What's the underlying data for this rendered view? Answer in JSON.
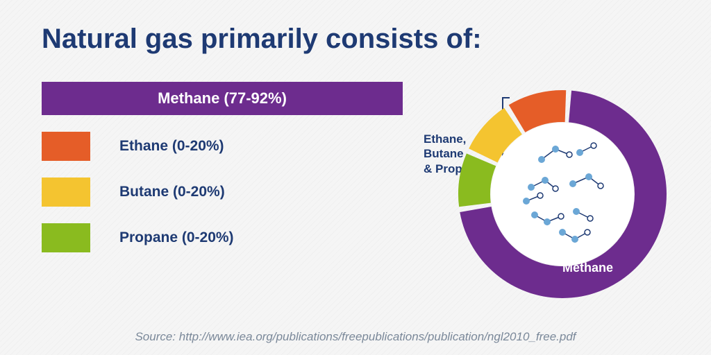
{
  "title": "Natural gas primarily consists of:",
  "colors": {
    "methane": "#6d2c8e",
    "ethane": "#e55d28",
    "butane": "#f4c430",
    "propane": "#8abb1f",
    "titleText": "#1e3a73",
    "molNode": "#6ba7d6",
    "molRing": "#1e3a73"
  },
  "components": [
    {
      "name": "Methane",
      "range": "(77-92%)",
      "label": "Methane (77-92%)",
      "colorKey": "methane",
      "isPrimary": true
    },
    {
      "name": "Ethane",
      "range": "(0-20%)",
      "label": "Ethane (0-20%)",
      "colorKey": "ethane",
      "isPrimary": false
    },
    {
      "name": "Butane",
      "range": "(0-20%)",
      "label": "Butane (0-20%)",
      "colorKey": "butane",
      "isPrimary": false
    },
    {
      "name": "Propane",
      "range": "(0-20%)",
      "label": "Propane (0-20%)",
      "colorKey": "propane",
      "isPrimary": false
    }
  ],
  "donut": {
    "type": "donut",
    "outerR": 150,
    "innerR": 104,
    "gapDeg": 3,
    "segments": [
      {
        "label": "Methane",
        "colorKey": "methane",
        "startDeg": 5,
        "endDeg": 260
      },
      {
        "label": "Propane",
        "colorKey": "propane",
        "startDeg": 263,
        "endDeg": 293
      },
      {
        "label": "Butane",
        "colorKey": "butane",
        "startDeg": 296,
        "endDeg": 326
      },
      {
        "label": "Ethane",
        "colorKey": "ethane",
        "startDeg": 329,
        "endDeg": 362
      }
    ],
    "centerLabel": "Methane"
  },
  "bracketLabel": "Ethane,\nButane\n& Propane",
  "source": "Source: http://www.iea.org/publications/freepublications/publication/ngl2010_free.pdf",
  "methaneBarWidth": 520,
  "swatchWidth": 70
}
